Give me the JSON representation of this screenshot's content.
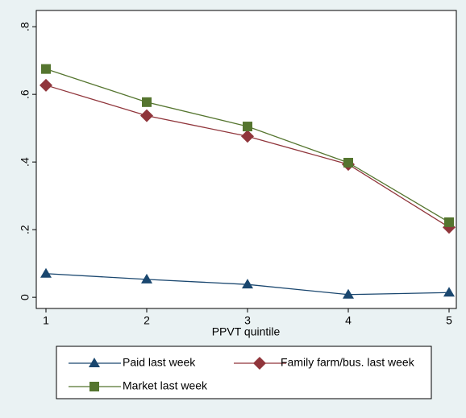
{
  "chart_data": {
    "type": "line",
    "x_label": "PPVT quintile",
    "x": [
      1,
      2,
      3,
      4,
      5
    ],
    "series": [
      {
        "name": "Paid last week",
        "color": "#1a476f",
        "marker": "triangle",
        "values": [
          0.07,
          0.053,
          0.038,
          0.008,
          0.014
        ]
      },
      {
        "name": "Family farm/bus. last week",
        "color": "#90353b",
        "marker": "diamond",
        "values": [
          0.627,
          0.537,
          0.476,
          0.393,
          0.207
        ]
      },
      {
        "name": "Market last week",
        "color": "#55752f",
        "marker": "square",
        "values": [
          0.675,
          0.577,
          0.505,
          0.398,
          0.222
        ]
      }
    ],
    "xlim": [
      0.904,
      5.072
    ],
    "xticks": [
      1,
      2,
      3,
      4,
      5
    ],
    "ylim": [
      -0.033,
      0.848
    ],
    "yticks": [
      0,
      {
        "value": 0.2,
        "label": ".2"
      },
      {
        "value": 0.4,
        "label": ".4"
      },
      {
        "value": 0.6,
        "label": ".6"
      },
      {
        "value": 0.8,
        "label": ".8"
      }
    ],
    "grid": false
  }
}
